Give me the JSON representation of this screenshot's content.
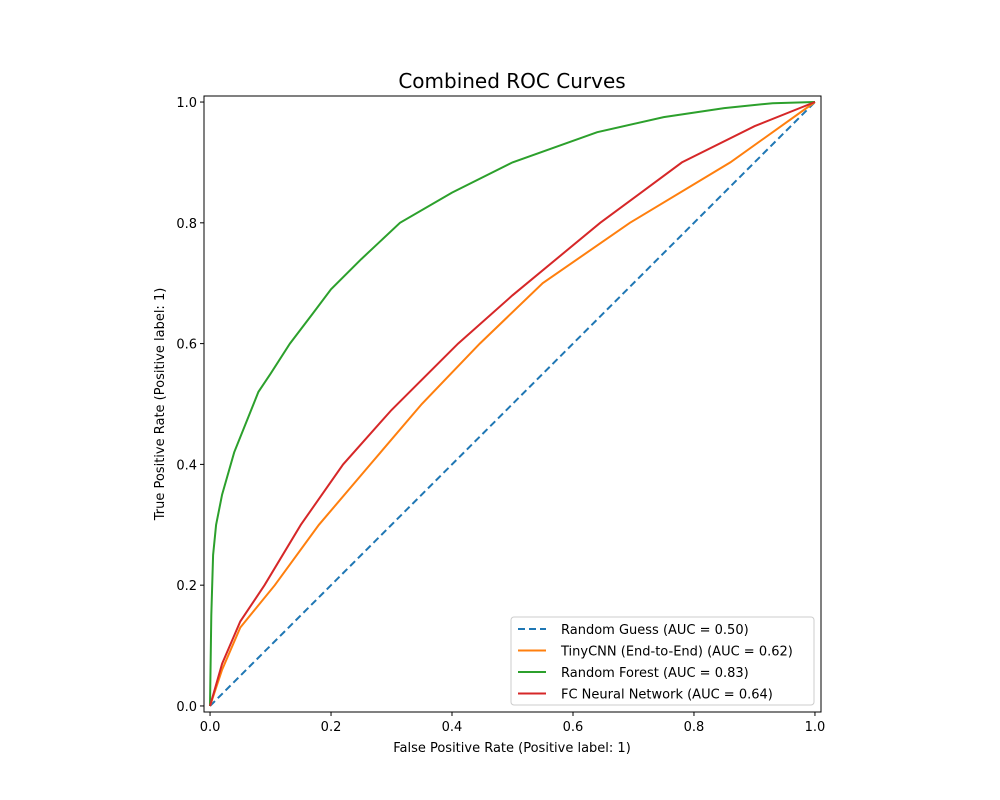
{
  "chart_data": {
    "type": "line",
    "title": "Combined ROC Curves",
    "xlabel": "False Positive Rate (Positive label: 1)",
    "ylabel": "True Positive Rate (Positive label: 1)",
    "xlim": [
      -0.01,
      1.01
    ],
    "ylim": [
      -0.01,
      1.01
    ],
    "xticks": [
      "0.0",
      "0.2",
      "0.4",
      "0.6",
      "0.8",
      "1.0"
    ],
    "yticks": [
      "0.0",
      "0.2",
      "0.4",
      "0.6",
      "0.8",
      "1.0"
    ],
    "grid": false,
    "legend_position": "lower-right",
    "series": [
      {
        "name": "Random Guess (AUC = 0.50)",
        "color": "#1f77b4",
        "dashed": true,
        "x": [
          0,
          1
        ],
        "y": [
          0,
          1
        ]
      },
      {
        "name": "TinyCNN (End-to-End) (AUC = 0.62)",
        "color": "#ff7f0e",
        "dashed": false,
        "x": [
          0,
          0.02,
          0.05,
          0.107,
          0.18,
          0.265,
          0.35,
          0.446,
          0.55,
          0.694,
          0.86,
          1
        ],
        "y": [
          0,
          0.06,
          0.13,
          0.2,
          0.3,
          0.4,
          0.5,
          0.6,
          0.7,
          0.8,
          0.9,
          1
        ]
      },
      {
        "name": "Random Forest (AUC = 0.83)",
        "color": "#2ca02c",
        "dashed": false,
        "x": [
          0,
          0.002,
          0.005,
          0.01,
          0.02,
          0.04,
          0.06,
          0.08,
          0.1,
          0.132,
          0.17,
          0.2,
          0.25,
          0.314,
          0.4,
          0.5,
          0.64,
          0.75,
          0.85,
          0.93,
          1
        ],
        "y": [
          0,
          0.15,
          0.25,
          0.3,
          0.35,
          0.42,
          0.47,
          0.52,
          0.55,
          0.6,
          0.65,
          0.69,
          0.74,
          0.8,
          0.85,
          0.9,
          0.95,
          0.975,
          0.99,
          0.998,
          1
        ]
      },
      {
        "name": "FC Neural Network (AUC = 0.64)",
        "color": "#d62728",
        "dashed": false,
        "x": [
          0,
          0.02,
          0.05,
          0.09,
          0.15,
          0.22,
          0.3,
          0.41,
          0.5,
          0.645,
          0.78,
          0.9,
          1
        ],
        "y": [
          0,
          0.07,
          0.14,
          0.2,
          0.3,
          0.4,
          0.49,
          0.6,
          0.68,
          0.8,
          0.9,
          0.96,
          1
        ]
      }
    ]
  }
}
